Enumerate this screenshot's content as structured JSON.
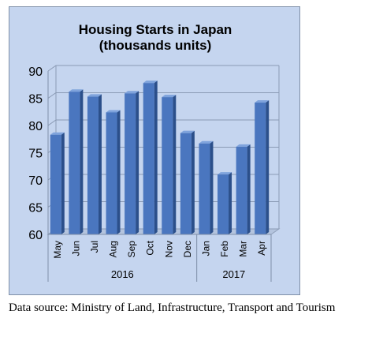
{
  "chart_data": {
    "type": "bar",
    "title_lines": [
      "Housing Starts in Japan",
      "(thousands units)"
    ],
    "categories": [
      "May",
      "Jun",
      "Jul",
      "Aug",
      "Sep",
      "Oct",
      "Nov",
      "Dec",
      "Jan",
      "Feb",
      "Mar",
      "Apr"
    ],
    "groups": [
      {
        "label": "2016",
        "count": 8
      },
      {
        "label": "2017",
        "count": 4
      }
    ],
    "values": [
      78.3,
      86.2,
      85.3,
      82.4,
      85.9,
      87.8,
      85.2,
      78.6,
      76.7,
      71.0,
      76.1,
      84.2
    ],
    "ylim": [
      60,
      90
    ],
    "yticks": [
      "60",
      "65",
      "70",
      "75",
      "80",
      "85",
      "90"
    ],
    "grid": true,
    "bar_color": "#4a76bf",
    "bar_side_color": "#2b4f8a",
    "bar_top_color": "#7fa3dc"
  },
  "source_note": "Data source: Ministry of Land, Infrastructure, Transport and Tourism"
}
